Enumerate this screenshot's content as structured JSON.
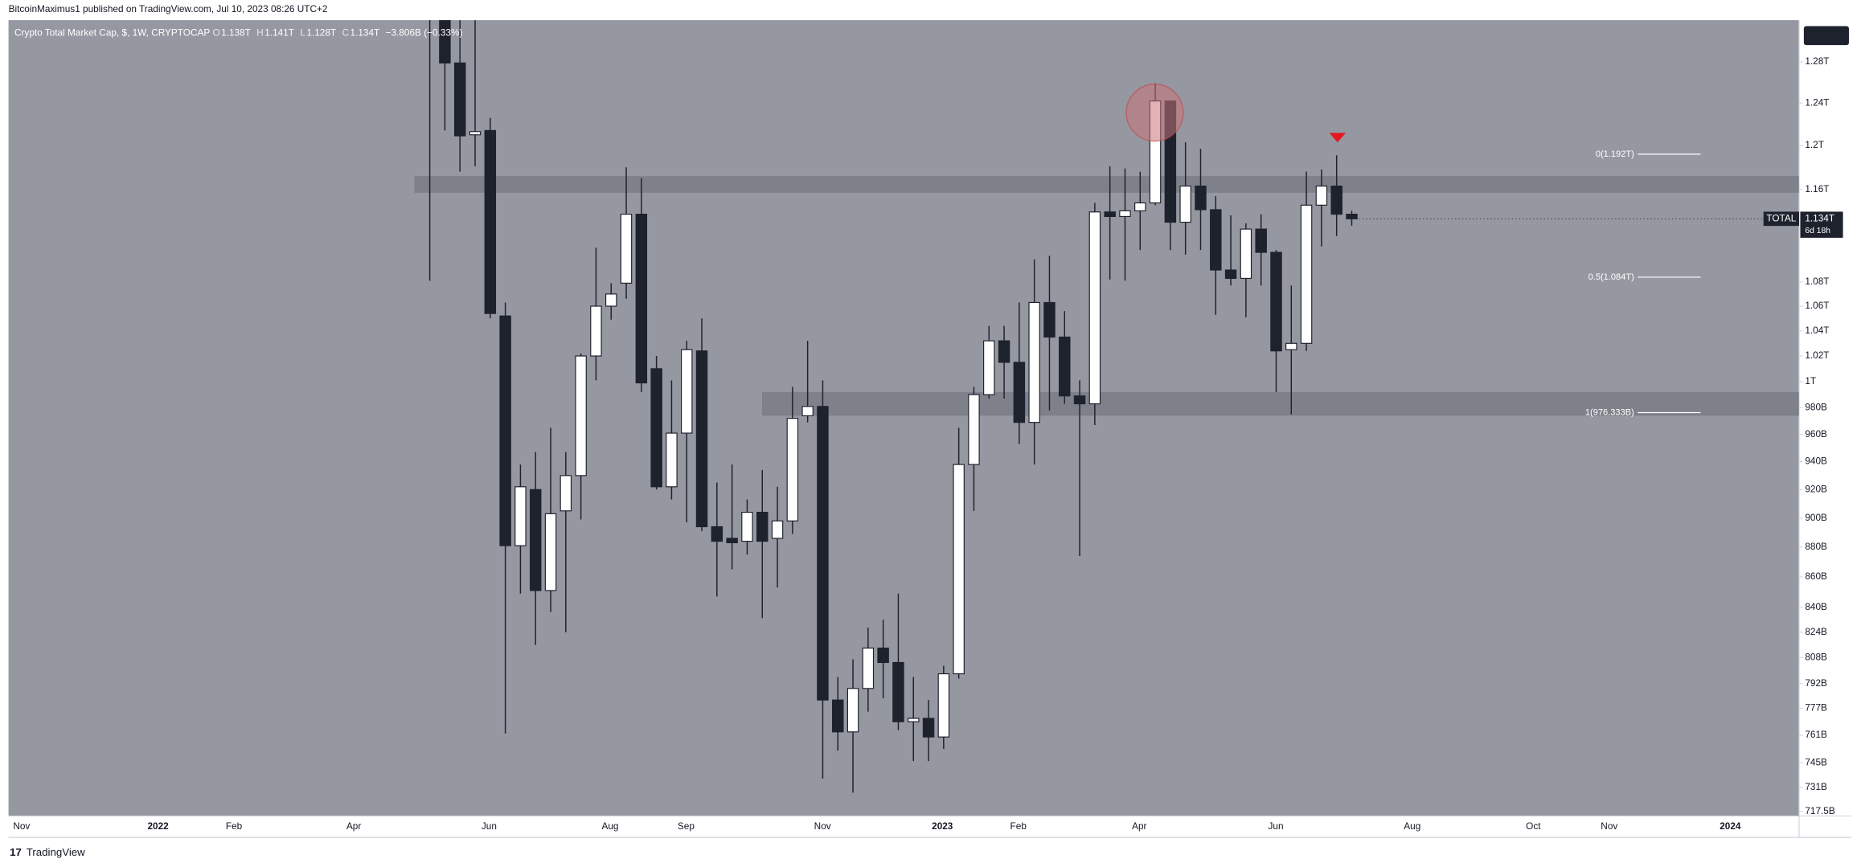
{
  "header": {
    "text": "BitcoinMaximus1 published on TradingView.com, Jul 10, 2023 08:26 UTC+2"
  },
  "footer": {
    "text": "TradingView"
  },
  "chart_data": {
    "type": "candlestick",
    "title": "Crypto Total Market Cap, $, 1W, CRYPTOCAP",
    "legend_ohlc": [
      "O",
      "1.138T",
      "H",
      "1.141T",
      "L",
      "1.128T",
      "C",
      "1.134T",
      "−3.806B (−0.33%)"
    ],
    "open": [
      1418,
      1330,
      1279,
      1210,
      1214,
      1052,
      881,
      920,
      851,
      905,
      930,
      1020,
      1060,
      1079,
      1138,
      1010,
      922,
      961,
      1024,
      894,
      886,
      884,
      904,
      886,
      898,
      974,
      981,
      782,
      763,
      789,
      814,
      805,
      769,
      771,
      760,
      798,
      938,
      990,
      1032,
      1015,
      969,
      1063,
      1035,
      989,
      983,
      1140,
      1136,
      1141,
      1148,
      1242,
      1131,
      1163,
      1142,
      1090,
      1083,
      1125,
      1105,
      1025,
      1030,
      1146,
      1163,
      1138
    ],
    "high": [
      1444,
      1355,
      1322,
      1322,
      1226,
      1063,
      938,
      947,
      965,
      947,
      1022,
      1109,
      1079,
      1180,
      1170,
      1020,
      1001,
      1032,
      1050,
      925,
      938,
      913,
      934,
      922,
      996,
      1032,
      1001,
      796,
      807,
      827,
      832,
      849,
      796,
      782,
      803,
      965,
      996,
      1044,
      1044,
      1063,
      1099,
      1102,
      1056,
      1001,
      1148,
      1181,
      1179,
      1176,
      1259,
      1242,
      1203,
      1197,
      1154,
      1137,
      1130,
      1138,
      1107,
      1077,
      1176,
      1178,
      1191,
      1141
    ],
    "low": [
      1081,
      1214,
      1176,
      1181,
      1050,
      762,
      849,
      816,
      837,
      824,
      899,
      1001,
      1049,
      1066,
      992,
      920,
      913,
      897,
      891,
      847,
      865,
      875,
      833,
      853,
      889,
      969,
      736,
      752,
      728,
      775,
      783,
      764,
      746,
      746,
      753,
      795,
      905,
      987,
      987,
      953,
      938,
      978,
      983,
      874,
      967,
      1082,
      1081,
      1107,
      1146,
      1107,
      1103,
      1107,
      1053,
      1077,
      1051,
      1077,
      992,
      975,
      1024,
      1110,
      1119,
      1128
    ],
    "close": [
      1330,
      1279,
      1209,
      1213,
      1054,
      881,
      922,
      851,
      903,
      930,
      1020,
      1060,
      1070,
      1138,
      999,
      922,
      961,
      1025,
      894,
      884,
      883,
      904,
      884,
      898,
      972,
      981,
      782,
      763,
      789,
      814,
      805,
      769,
      771,
      760,
      798,
      938,
      990,
      1032,
      1015,
      969,
      1063,
      1035,
      989,
      983,
      1140,
      1136,
      1141,
      1148,
      1242,
      1131,
      1163,
      1142,
      1090,
      1083,
      1125,
      1105,
      1024,
      1030,
      1146,
      1163,
      1138,
      1134
    ],
    "up_color": "#ffffff",
    "down_color": "#1e222d",
    "log_scale": true,
    "ylim": [
      715,
      1322
    ],
    "yticks": [
      {
        "value": 1280,
        "label": "1.28T"
      },
      {
        "value": 1240,
        "label": "1.24T"
      },
      {
        "value": 1200,
        "label": "1.2T"
      },
      {
        "value": 1160,
        "label": "1.16T"
      },
      {
        "value": 1080,
        "label": "1.08T"
      },
      {
        "value": 1060,
        "label": "1.06T"
      },
      {
        "value": 1040,
        "label": "1.04T"
      },
      {
        "value": 1020,
        "label": "1.02T"
      },
      {
        "value": 1000,
        "label": "1T"
      },
      {
        "value": 980,
        "label": "980B"
      },
      {
        "value": 960,
        "label": "960B"
      },
      {
        "value": 940,
        "label": "940B"
      },
      {
        "value": 920,
        "label": "920B"
      },
      {
        "value": 900,
        "label": "900B"
      },
      {
        "value": 880,
        "label": "880B"
      },
      {
        "value": 860,
        "label": "860B"
      },
      {
        "value": 840,
        "label": "840B"
      },
      {
        "value": 824,
        "label": "824B"
      },
      {
        "value": 808,
        "label": "808B"
      },
      {
        "value": 792,
        "label": "792B"
      },
      {
        "value": 777,
        "label": "777B"
      },
      {
        "value": 761,
        "label": "761B"
      },
      {
        "value": 745,
        "label": "745B"
      },
      {
        "value": 731,
        "label": "731B"
      },
      {
        "value": 717.5,
        "label": "717.5B"
      }
    ],
    "x_labels": [
      "Nov",
      "2022",
      "Feb",
      "Apr",
      "Jun",
      "Aug",
      "Sep",
      "Nov",
      "2023",
      "Feb",
      "Apr",
      "Jun",
      "Aug",
      "Oct",
      "Nov",
      "2024"
    ],
    "zones": [
      {
        "from": 1157,
        "to": 1172
      },
      {
        "from": 974,
        "to": 992
      }
    ],
    "fib_levels": [
      {
        "value": 1192,
        "label": "0(1.192T)"
      },
      {
        "value": 1084,
        "label": "0.5(1.084T)"
      },
      {
        "value": 976.333,
        "label": "1(976.333B)"
      }
    ],
    "last_price": {
      "name": "TOTAL",
      "value": 1134,
      "label": "1.134T",
      "countdown": "6d 18h"
    }
  }
}
